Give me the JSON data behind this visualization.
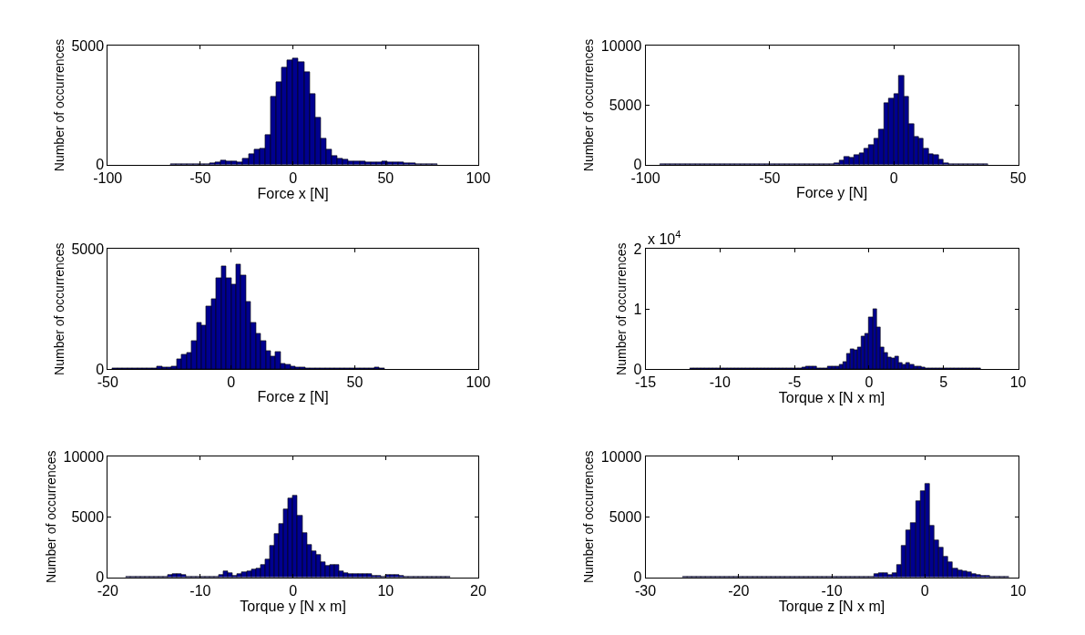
{
  "chart_data": [
    {
      "type": "histogram",
      "xlabel": "Force x [N]",
      "ylabel": "Number of occurrences",
      "color": "#00008f",
      "xlim": [
        -100,
        100
      ],
      "xticks": [
        -100,
        -50,
        0,
        50,
        100
      ],
      "ylim": [
        0,
        5000
      ],
      "yticks": [
        0,
        5000
      ],
      "bins": [
        -66,
        -63,
        -60,
        -57,
        -54,
        -51,
        -48,
        -45,
        -42,
        -39,
        -36,
        -33,
        -30,
        -27,
        -24,
        -21,
        -18,
        -15,
        -12,
        -9,
        -6,
        -3,
        0,
        3,
        6,
        9,
        12,
        15,
        18,
        21,
        24,
        27,
        30,
        33,
        36,
        39,
        42,
        45,
        48,
        51,
        54,
        57,
        60,
        63,
        66,
        69,
        72,
        75,
        78
      ],
      "values": [
        30,
        30,
        40,
        40,
        40,
        40,
        40,
        50,
        100,
        180,
        120,
        120,
        100,
        250,
        430,
        620,
        680,
        1230,
        2840,
        3460,
        4080,
        4380,
        4470,
        4320,
        3890,
        2960,
        1980,
        1110,
        620,
        350,
        270,
        220,
        150,
        130,
        120,
        110,
        110,
        100,
        130,
        110,
        100,
        90,
        60,
        50,
        40,
        40,
        40,
        30
      ]
    },
    {
      "type": "histogram",
      "xlabel": "Force y [N]",
      "ylabel": "Number of occurrences",
      "color": "#00008f",
      "xlim": [
        -100,
        50
      ],
      "xticks": [
        -100,
        -50,
        0,
        50
      ],
      "ylim": [
        0,
        10000
      ],
      "yticks": [
        0,
        5000,
        10000
      ],
      "bins": [
        -94,
        -92,
        -90,
        -88,
        -86,
        -84,
        -82,
        -80,
        -78,
        -76,
        -74,
        -72,
        -70,
        -68,
        -66,
        -64,
        -62,
        -60,
        -58,
        -56,
        -54,
        -52,
        -50,
        -48,
        -46,
        -44,
        -42,
        -40,
        -38,
        -36,
        -34,
        -32,
        -30,
        -28,
        -26,
        -24,
        -22,
        -20,
        -18,
        -16,
        -14,
        -12,
        -10,
        -8,
        -6,
        -4,
        -2,
        0,
        2,
        4,
        6,
        8,
        10,
        12,
        14,
        16,
        18,
        20,
        22,
        24,
        26,
        28,
        30,
        32,
        34,
        36,
        38
      ],
      "values": [
        50,
        50,
        50,
        50,
        50,
        50,
        50,
        50,
        50,
        50,
        50,
        50,
        50,
        50,
        50,
        50,
        50,
        50,
        50,
        50,
        50,
        50,
        50,
        50,
        80,
        50,
        80,
        50,
        50,
        50,
        50,
        80,
        80,
        50,
        50,
        150,
        330,
        650,
        600,
        830,
        1000,
        1330,
        1650,
        2200,
        2950,
        5200,
        5580,
        5950,
        7450,
        5700,
        3450,
        2330,
        2150,
        1330,
        900,
        830,
        450,
        150,
        50,
        50,
        50,
        50,
        50,
        50,
        50,
        50
      ]
    },
    {
      "type": "histogram",
      "xlabel": "Force z [N]",
      "ylabel": "Number of occurrences",
      "color": "#00008f",
      "xlim": [
        -50,
        100
      ],
      "xticks": [
        -50,
        0,
        50,
        100
      ],
      "ylim": [
        0,
        5000
      ],
      "yticks": [
        0,
        5000
      ],
      "bins": [
        -48,
        -46,
        -44,
        -42,
        -40,
        -38,
        -36,
        -34,
        -32,
        -30,
        -28,
        -26,
        -24,
        -22,
        -20,
        -18,
        -16,
        -14,
        -12,
        -10,
        -8,
        -6,
        -4,
        -2,
        0,
        2,
        4,
        6,
        8,
        10,
        12,
        14,
        16,
        18,
        20,
        22,
        24,
        26,
        28,
        30,
        32,
        34,
        36,
        38,
        40,
        42,
        44,
        46,
        48,
        50,
        52,
        54,
        56,
        58,
        60,
        62
      ],
      "values": [
        30,
        30,
        30,
        30,
        30,
        30,
        30,
        30,
        30,
        120,
        90,
        90,
        120,
        430,
        620,
        680,
        1180,
        1920,
        1800,
        2600,
        2910,
        3780,
        4280,
        3780,
        3530,
        4340,
        3910,
        2810,
        1920,
        1490,
        1180,
        740,
        530,
        710,
        210,
        190,
        110,
        90,
        60,
        30,
        30,
        30,
        30,
        30,
        30,
        30,
        30,
        30,
        30,
        30,
        30,
        30,
        30,
        60,
        30
      ]
    },
    {
      "type": "histogram",
      "xlabel": "Torque x [N x m]",
      "ylabel": "Number of occurrences",
      "color": "#00008f",
      "xlim": [
        -15,
        10
      ],
      "xticks": [
        -15,
        -10,
        -5,
        0,
        5,
        10
      ],
      "ylim": [
        0,
        2
      ],
      "yticks": [
        0,
        1,
        2
      ],
      "annotations": [
        "x 10$^{4}$"
      ],
      "bins": [
        -12,
        -11.75,
        -11.5,
        -11.25,
        -11,
        -10.75,
        -10.5,
        -10.25,
        -10,
        -9.75,
        -9.5,
        -9.25,
        -9,
        -8.75,
        -8.5,
        -8.25,
        -8,
        -7.75,
        -7.5,
        -7.25,
        -7,
        -6.75,
        -6.5,
        -6.25,
        -6,
        -5.75,
        -5.5,
        -5.25,
        -5,
        -4.75,
        -4.5,
        -4.25,
        -4,
        -3.75,
        -3.5,
        -3.25,
        -3,
        -2.75,
        -2.5,
        -2.25,
        -2,
        -1.75,
        -1.5,
        -1.25,
        -1,
        -0.75,
        -0.5,
        -0.25,
        0,
        0.25,
        0.5,
        0.75,
        1,
        1.25,
        1.5,
        1.75,
        2,
        2.25,
        2.5,
        2.75,
        3,
        3.25,
        3.5,
        3.75,
        4,
        4.25,
        4.5,
        4.75,
        5,
        5.25,
        5.5,
        5.75,
        6,
        6.25,
        6.5,
        6.75,
        7,
        7.25,
        7.5
      ],
      "values": [
        0.01,
        0.01,
        0.01,
        0.01,
        0.01,
        0.01,
        0.01,
        0.01,
        0.01,
        0.01,
        0.01,
        0.01,
        0.01,
        0.01,
        0.01,
        0.01,
        0.01,
        0.01,
        0.01,
        0.01,
        0.01,
        0.01,
        0.01,
        0.01,
        0.01,
        0.01,
        0.01,
        0.01,
        0.01,
        0.01,
        0.03,
        0.04,
        0.04,
        0.04,
        0.02,
        0.02,
        0.02,
        0.04,
        0.05,
        0.05,
        0.08,
        0.12,
        0.25,
        0.33,
        0.32,
        0.37,
        0.55,
        0.59,
        0.87,
        1.0,
        0.69,
        0.37,
        0.27,
        0.2,
        0.18,
        0.21,
        0.1,
        0.07,
        0.11,
        0.07,
        0.05,
        0.04,
        0.03,
        0.02,
        0.01,
        0.01,
        0.01,
        0.01,
        0.01,
        0.01,
        0.01,
        0.01,
        0.01,
        0.01,
        0.01,
        0.01,
        0.01,
        0.01
      ]
    },
    {
      "type": "histogram",
      "xlabel": "Torque y [N x m]",
      "ylabel": "Number of occurrences",
      "color": "#00008f",
      "xlim": [
        -20,
        20
      ],
      "xticks": [
        -20,
        -10,
        0,
        10,
        20
      ],
      "ylim": [
        0,
        10000
      ],
      "yticks": [
        0,
        5000,
        10000
      ],
      "bins": [
        -18,
        -17.5,
        -17,
        -16.5,
        -16,
        -15.5,
        -15,
        -14.5,
        -14,
        -13.5,
        -13,
        -12.5,
        -12,
        -11.5,
        -11,
        -10.5,
        -10,
        -9.5,
        -9,
        -8.5,
        -8,
        -7.5,
        -7,
        -6.5,
        -6,
        -5.5,
        -5,
        -4.5,
        -4,
        -3.5,
        -3,
        -2.5,
        -2,
        -1.5,
        -1,
        -0.5,
        0,
        0.5,
        1,
        1.5,
        2,
        2.5,
        3,
        3.5,
        4,
        4.5,
        5,
        5.5,
        6,
        6.5,
        7,
        7.5,
        8,
        8.5,
        9,
        9.5,
        10,
        10.5,
        11,
        11.5,
        12,
        12.5,
        13,
        13.5,
        14,
        14.5,
        15,
        15.5,
        16,
        16.5,
        17
      ],
      "values": [
        50,
        50,
        50,
        50,
        50,
        50,
        50,
        50,
        50,
        200,
        300,
        300,
        170,
        50,
        50,
        50,
        50,
        50,
        50,
        50,
        220,
        490,
        370,
        120,
        250,
        420,
        490,
        660,
        710,
        1030,
        1480,
        2580,
        3570,
        4430,
        5590,
        6520,
        6720,
        5090,
        3690,
        2660,
        2140,
        1850,
        1230,
        980,
        1030,
        1030,
        490,
        320,
        300,
        300,
        300,
        300,
        300,
        120,
        120,
        50,
        170,
        170,
        170,
        120,
        50,
        50,
        50,
        50,
        50,
        50,
        50,
        50,
        50,
        50
      ]
    },
    {
      "type": "histogram",
      "xlabel": "Torque z [N x m]",
      "ylabel": "Number of occurrences",
      "color": "#00008f",
      "xlim": [
        -30,
        10
      ],
      "xticks": [
        -30,
        -20,
        -10,
        0,
        10
      ],
      "ylim": [
        0,
        10000
      ],
      "yticks": [
        0,
        5000,
        10000
      ],
      "bins": [
        -26,
        -25.5,
        -25,
        -24.5,
        -24,
        -23.5,
        -23,
        -22.5,
        -22,
        -21.5,
        -21,
        -20.5,
        -20,
        -19.5,
        -19,
        -18.5,
        -18,
        -17.5,
        -17,
        -16.5,
        -16,
        -15.5,
        -15,
        -14.5,
        -14,
        -13.5,
        -13,
        -12.5,
        -12,
        -11.5,
        -11,
        -10.5,
        -10,
        -9.5,
        -9,
        -8.5,
        -8,
        -7.5,
        -7,
        -6.5,
        -6,
        -5.5,
        -5,
        -4.5,
        -4,
        -3.5,
        -3,
        -2.5,
        -2,
        -1.5,
        -1,
        -0.5,
        0,
        0.5,
        1,
        1.5,
        2,
        2.5,
        3,
        3.5,
        4,
        4.5,
        5,
        5.5,
        6,
        6.5,
        7,
        7.5,
        8,
        8.5,
        9
      ],
      "values": [
        50,
        50,
        50,
        50,
        50,
        50,
        50,
        50,
        50,
        50,
        50,
        50,
        50,
        50,
        50,
        50,
        50,
        50,
        50,
        50,
        50,
        50,
        50,
        50,
        50,
        50,
        50,
        50,
        50,
        50,
        50,
        50,
        50,
        50,
        50,
        50,
        50,
        50,
        50,
        50,
        50,
        250,
        370,
        320,
        220,
        370,
        990,
        2590,
        3870,
        4510,
        6280,
        7140,
        7760,
        4300,
        3050,
        2440,
        1720,
        1230,
        740,
        570,
        490,
        420,
        250,
        170,
        100,
        100,
        80,
        60,
        50,
        40
      ]
    }
  ]
}
